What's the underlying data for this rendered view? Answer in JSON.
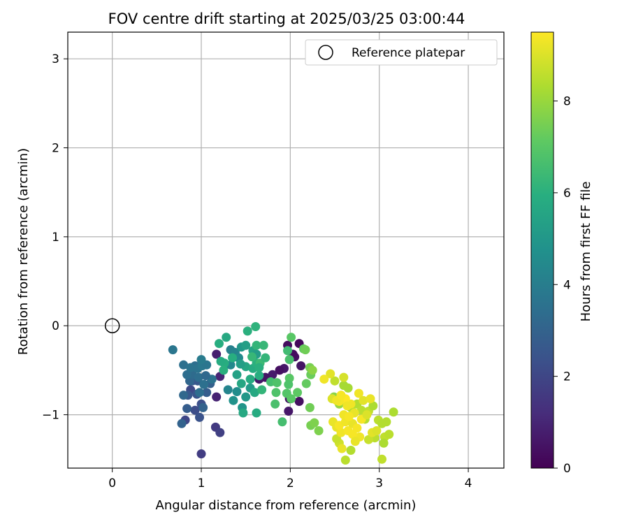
{
  "chart_data": {
    "type": "scatter",
    "title": "FOV centre drift starting at 2025/03/25 03:00:44",
    "xlabel": "Angular distance from reference (arcmin)",
    "ylabel": "Rotation from reference (arcmin)",
    "xlim": [
      -0.5,
      4.4
    ],
    "ylim": [
      -1.6,
      3.3
    ],
    "xticks": [
      0,
      1,
      2,
      3,
      4
    ],
    "yticks": [
      -1,
      0,
      1,
      2,
      3
    ],
    "xtick_labels": [
      "0",
      "1",
      "2",
      "3",
      "4"
    ],
    "ytick_labels": [
      "−1",
      "0",
      "1",
      "2",
      "3"
    ],
    "grid": true,
    "legend": {
      "position": "top-right",
      "entries": [
        "Reference platepar"
      ]
    },
    "colorbar": {
      "label": "Hours from first FF file",
      "range": [
        0,
        9.5
      ],
      "ticks": [
        0,
        2,
        4,
        6,
        8
      ],
      "tick_labels": [
        "0",
        "2",
        "4",
        "6",
        "8"
      ],
      "colormap": "viridis"
    },
    "reference_point": {
      "x": 0,
      "y": 0
    },
    "points": [
      [
        1.97,
        -0.22,
        0.3
      ],
      [
        2.05,
        -0.35,
        0.4
      ],
      [
        2.1,
        -0.2,
        0.2
      ],
      [
        2.12,
        -0.45,
        0.5
      ],
      [
        2.03,
        -0.32,
        0.3
      ],
      [
        1.93,
        -0.48,
        0.6
      ],
      [
        1.88,
        -0.5,
        0.4
      ],
      [
        1.8,
        -0.55,
        0.7
      ],
      [
        1.72,
        -0.58,
        0.5
      ],
      [
        1.65,
        -0.6,
        0.6
      ],
      [
        1.99,
        -0.82,
        0.5
      ],
      [
        2.1,
        -0.85,
        0.4
      ],
      [
        1.98,
        -0.96,
        0.6
      ],
      [
        1.17,
        -0.32,
        0.8
      ],
      [
        1.17,
        -0.8,
        0.9
      ],
      [
        1.21,
        -0.57,
        1.0
      ],
      [
        1.16,
        -1.14,
        1.6
      ],
      [
        1.21,
        -1.2,
        1.8
      ],
      [
        1.0,
        -1.44,
        1.7
      ],
      [
        0.82,
        -1.06,
        2.0
      ],
      [
        0.93,
        -0.95,
        2.2
      ],
      [
        0.98,
        -1.03,
        2.4
      ],
      [
        1.0,
        -0.88,
        2.3
      ],
      [
        0.88,
        -0.72,
        2.1
      ],
      [
        0.95,
        -0.77,
        2.5
      ],
      [
        0.85,
        -0.78,
        2.6
      ],
      [
        0.9,
        -0.62,
        2.7
      ],
      [
        1.06,
        -0.75,
        2.8
      ],
      [
        1.1,
        -0.65,
        2.9
      ],
      [
        0.96,
        -0.62,
        2.6
      ],
      [
        0.78,
        -1.1,
        3.0
      ],
      [
        0.8,
        -0.78,
        3.2
      ],
      [
        0.84,
        -0.93,
        2.8
      ],
      [
        0.87,
        -0.62,
        3.1
      ],
      [
        1.02,
        -0.92,
        3.0
      ],
      [
        0.9,
        -0.55,
        3.3
      ],
      [
        0.93,
        -0.45,
        3.4
      ],
      [
        0.84,
        -0.55,
        3.4
      ],
      [
        0.8,
        -0.44,
        3.5
      ],
      [
        0.88,
        -0.47,
        3.6
      ],
      [
        0.96,
        -0.48,
        3.6
      ],
      [
        1.01,
        -0.45,
        3.8
      ],
      [
        1.06,
        -0.44,
        3.7
      ],
      [
        1.0,
        -0.38,
        3.9
      ],
      [
        1.12,
        -0.6,
        3.6
      ],
      [
        0.68,
        -0.27,
        3.7
      ],
      [
        0.97,
        -0.58,
        3.4
      ],
      [
        1.05,
        -0.56,
        3.2
      ],
      [
        0.98,
        -0.75,
        3.4
      ],
      [
        1.03,
        -0.66,
        3.5
      ],
      [
        1.33,
        -0.27,
        4.1
      ],
      [
        1.38,
        -0.3,
        4.2
      ],
      [
        1.33,
        -0.44,
        4.4
      ],
      [
        1.42,
        -0.36,
        4.5
      ],
      [
        1.3,
        -0.72,
        4.3
      ],
      [
        1.4,
        -0.74,
        4.6
      ],
      [
        1.36,
        -0.84,
        4.8
      ],
      [
        1.46,
        -0.92,
        4.9
      ],
      [
        1.5,
        -0.8,
        5.0
      ],
      [
        1.55,
        -0.7,
        5.1
      ],
      [
        1.45,
        -0.24,
        5.0
      ],
      [
        1.5,
        -0.22,
        5.3
      ],
      [
        1.58,
        -0.28,
        5.5
      ],
      [
        1.62,
        -0.32,
        5.2
      ],
      [
        1.4,
        -0.55,
        5.4
      ],
      [
        1.45,
        -0.65,
        5.6
      ],
      [
        1.55,
        -0.6,
        5.8
      ],
      [
        1.6,
        -0.75,
        5.7
      ],
      [
        1.65,
        -0.56,
        5.9
      ],
      [
        1.5,
        -0.46,
        5.6
      ],
      [
        1.58,
        -0.48,
        5.8
      ],
      [
        1.62,
        -0.42,
        6.0
      ],
      [
        1.35,
        -0.36,
        5.9
      ],
      [
        1.47,
        -0.98,
        5.7
      ],
      [
        1.62,
        -0.98,
        5.8
      ],
      [
        1.26,
        -0.42,
        5.9
      ],
      [
        1.28,
        -0.13,
        5.7
      ],
      [
        1.2,
        -0.2,
        5.9
      ],
      [
        1.22,
        -0.4,
        5.8
      ],
      [
        1.25,
        -0.5,
        6.0
      ],
      [
        1.52,
        -0.06,
        6.0
      ],
      [
        1.61,
        -0.01,
        6.1
      ],
      [
        1.62,
        -0.22,
        6.2
      ],
      [
        1.7,
        -0.22,
        6.3
      ],
      [
        1.57,
        -0.35,
        6.3
      ],
      [
        1.66,
        -0.42,
        6.4
      ],
      [
        1.72,
        -0.36,
        6.2
      ],
      [
        1.65,
        -0.47,
        6.0
      ],
      [
        1.68,
        -0.72,
        6.2
      ],
      [
        1.44,
        -0.43,
        5.3
      ],
      [
        1.78,
        -0.63,
        6.6
      ],
      [
        1.83,
        -0.88,
        6.7
      ],
      [
        1.85,
        -0.64,
        6.8
      ],
      [
        1.91,
        -1.08,
        6.6
      ],
      [
        1.84,
        -0.75,
        6.8
      ],
      [
        1.97,
        -0.28,
        6.5
      ],
      [
        1.99,
        -0.38,
        6.7
      ],
      [
        2.01,
        -0.13,
        7.0
      ],
      [
        1.99,
        -0.59,
        7.0
      ],
      [
        1.96,
        -0.76,
        6.9
      ],
      [
        1.98,
        -0.66,
        6.8
      ],
      [
        2.01,
        -0.82,
        7.0
      ],
      [
        2.08,
        -0.75,
        7.1
      ],
      [
        2.15,
        -0.26,
        7.2
      ],
      [
        2.23,
        -0.55,
        7.3
      ],
      [
        2.18,
        -0.65,
        7.2
      ],
      [
        2.17,
        -0.27,
        7.4
      ],
      [
        2.22,
        -0.47,
        7.5
      ],
      [
        2.23,
        -1.12,
        7.5
      ],
      [
        2.27,
        -1.09,
        7.6
      ],
      [
        2.32,
        -1.18,
        7.6
      ],
      [
        2.22,
        -0.92,
        7.4
      ],
      [
        2.25,
        -0.5,
        7.8
      ],
      [
        2.49,
        -0.8,
        7.8
      ],
      [
        2.55,
        -0.88,
        8.0
      ],
      [
        2.6,
        -0.67,
        8.2
      ],
      [
        2.65,
        -0.7,
        8.2
      ],
      [
        2.68,
        -0.92,
        8.3
      ],
      [
        2.75,
        -0.88,
        8.4
      ],
      [
        2.8,
        -0.95,
        8.5
      ],
      [
        2.84,
        -1.05,
        8.4
      ],
      [
        2.88,
        -0.96,
        8.6
      ],
      [
        2.93,
        -0.9,
        8.3
      ],
      [
        2.99,
        -1.06,
        8.5
      ],
      [
        3.03,
        -1.1,
        8.4
      ],
      [
        3.06,
        -1.25,
        8.6
      ],
      [
        3.05,
        -1.32,
        8.3
      ],
      [
        3.08,
        -1.08,
        8.4
      ],
      [
        3.11,
        -1.22,
        8.5
      ],
      [
        3.16,
        -0.97,
        8.3
      ],
      [
        2.62,
        -1.51,
        8.5
      ],
      [
        2.68,
        -1.4,
        8.4
      ],
      [
        3.03,
        -1.5,
        8.6
      ],
      [
        2.95,
        -1.26,
        8.5
      ],
      [
        2.88,
        -1.28,
        8.7
      ],
      [
        2.5,
        -0.62,
        8.6
      ],
      [
        2.55,
        -1.32,
        8.8
      ],
      [
        2.52,
        -1.27,
        8.7
      ],
      [
        2.6,
        -0.58,
        8.9
      ],
      [
        2.47,
        -0.82,
        9.0
      ],
      [
        2.45,
        -0.54,
        9.1
      ],
      [
        2.38,
        -0.6,
        9.3
      ],
      [
        2.48,
        -1.08,
        9.2
      ],
      [
        2.52,
        -1.14,
        9.2
      ],
      [
        2.57,
        -1.2,
        9.3
      ],
      [
        2.55,
        -1.12,
        9.4
      ],
      [
        2.62,
        -1.08,
        9.3
      ],
      [
        2.65,
        -1.18,
        9.4
      ],
      [
        2.7,
        -1.1,
        9.2
      ],
      [
        2.75,
        -1.15,
        9.4
      ],
      [
        2.78,
        -1.25,
        9.3
      ],
      [
        2.8,
        -1.05,
        9.4
      ],
      [
        2.72,
        -0.98,
        9.2
      ],
      [
        2.68,
        -0.88,
        9.3
      ],
      [
        2.62,
        -0.82,
        9.5
      ],
      [
        2.55,
        -0.85,
        9.4
      ],
      [
        2.64,
        -0.9,
        9.3
      ],
      [
        2.7,
        -1.22,
        9.4
      ],
      [
        2.58,
        -1.38,
        9.2
      ],
      [
        2.52,
        -0.84,
        9.3
      ],
      [
        2.57,
        -0.78,
        9.4
      ],
      [
        2.77,
        -0.76,
        9.3
      ],
      [
        2.82,
        -0.84,
        9.1
      ],
      [
        2.9,
        -0.82,
        9.2
      ],
      [
        2.86,
        -1.0,
        9.0
      ],
      [
        2.92,
        -1.2,
        9.1
      ],
      [
        2.97,
        -1.18,
        9.0
      ],
      [
        2.6,
        -1.0,
        9.3
      ],
      [
        2.66,
        -1.02,
        9.4
      ],
      [
        2.73,
        -1.3,
        9.2
      ]
    ]
  }
}
